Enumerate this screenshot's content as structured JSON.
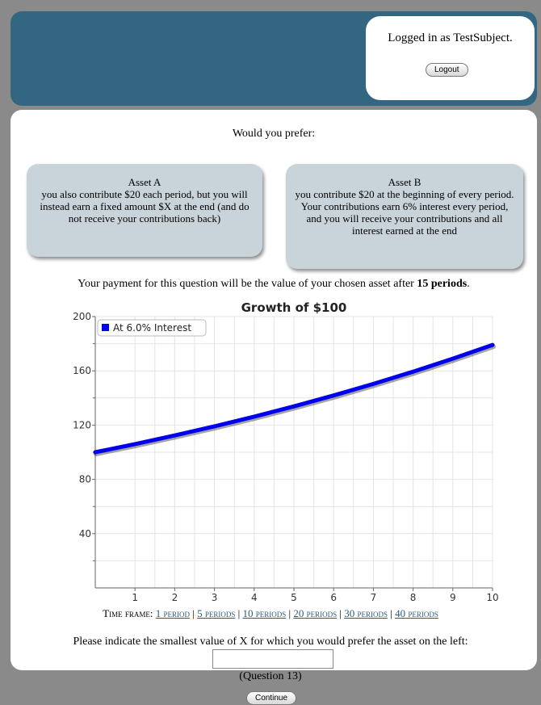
{
  "header": {
    "logged_in_text": "Logged in as TestSubject.",
    "logout_label": "Logout"
  },
  "question": {
    "prompt": "Would you prefer:"
  },
  "asset_a": {
    "title": "Asset A",
    "description": "you also contribute $20 each period, but you will instead earn a fixed amount $X at the end (and do not receive your contributions back)"
  },
  "asset_b": {
    "title": "Asset B",
    "description": "you contribute $20 at the beginning of every period. Your contributions earn 6% interest every period, and you will receive your contributions and all interest earned at the end"
  },
  "payment": {
    "prefix": "Your payment for this question will be the value of your chosen asset after ",
    "periods": "15 periods",
    "suffix": "."
  },
  "chart_data": {
    "type": "line",
    "title": "Growth of $100",
    "series": [
      {
        "name": "At 6.0% Interest",
        "color": "#0000ee",
        "x": [
          0,
          1,
          2,
          3,
          4,
          5,
          6,
          7,
          8,
          9,
          10
        ],
        "values": [
          100,
          106,
          112.36,
          119.1,
          126.25,
          133.82,
          141.85,
          150.36,
          159.38,
          168.95,
          179.08
        ]
      }
    ],
    "xlim": [
      0,
      10
    ],
    "ylim": [
      0,
      200
    ],
    "xticks": [
      1,
      2,
      3,
      4,
      5,
      6,
      7,
      8,
      9,
      10
    ],
    "yticks": [
      40,
      80,
      120,
      160,
      200
    ],
    "grid": true,
    "legend": "top-left"
  },
  "timeframe": {
    "label": "Time frame:",
    "options": [
      "1 period",
      "5 periods",
      "10 periods",
      "20 periods",
      "30 periods",
      "40 periods"
    ]
  },
  "instruction": "Please indicate the smallest value of X for which you would prefer the asset on the left:",
  "input": {
    "value": ""
  },
  "question_number": "(Question 13)",
  "continue_label": "Continue"
}
